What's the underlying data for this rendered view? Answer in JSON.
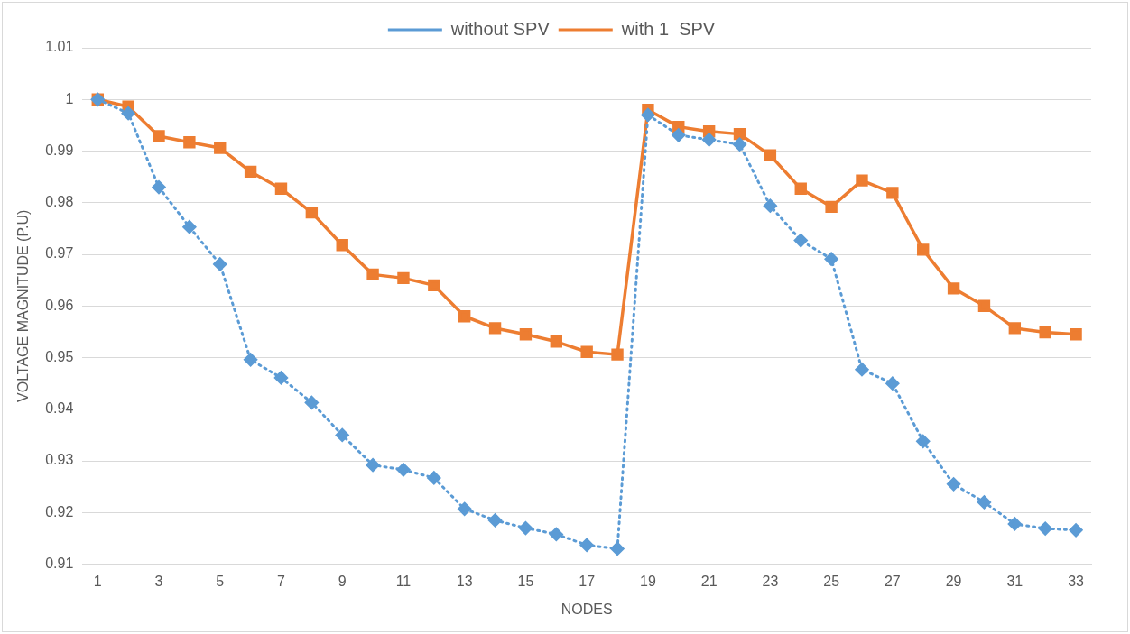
{
  "chart_data": {
    "type": "line",
    "xlabel": "NODES",
    "ylabel": "VOLTAGE MAGNITUDE (P.U)",
    "x": [
      1,
      2,
      3,
      4,
      5,
      6,
      7,
      8,
      9,
      10,
      11,
      12,
      13,
      14,
      15,
      16,
      17,
      18,
      19,
      20,
      21,
      22,
      23,
      24,
      25,
      26,
      27,
      28,
      29,
      30,
      31,
      32,
      33
    ],
    "xlim": [
      0.5,
      33.5
    ],
    "xticks": [
      1,
      3,
      5,
      7,
      9,
      11,
      13,
      15,
      17,
      19,
      21,
      23,
      25,
      27,
      29,
      31,
      33
    ],
    "series": [
      {
        "name": "without SPV",
        "color": "#5b9bd5",
        "marker": "diamond",
        "line_style": "dotted",
        "values": [
          1.0,
          0.9973,
          0.983,
          0.9753,
          0.9681,
          0.9496,
          0.9461,
          0.9413,
          0.935,
          0.9292,
          0.9283,
          0.9267,
          0.9207,
          0.9185,
          0.917,
          0.9158,
          0.9137,
          0.913,
          0.997,
          0.9931,
          0.9922,
          0.9913,
          0.9794,
          0.9727,
          0.9691,
          0.9477,
          0.945,
          0.9338,
          0.9255,
          0.922,
          0.9178,
          0.9169,
          0.9166
        ]
      },
      {
        "name": "with 1  SPV",
        "color": "#ed7d31",
        "marker": "square",
        "line_style": "solid",
        "values": [
          1.0,
          0.9986,
          0.9929,
          0.9917,
          0.9906,
          0.986,
          0.9827,
          0.9781,
          0.9718,
          0.9661,
          0.9654,
          0.964,
          0.958,
          0.9557,
          0.9545,
          0.9531,
          0.9511,
          0.9506,
          0.998,
          0.9947,
          0.9938,
          0.9933,
          0.9892,
          0.9827,
          0.9792,
          0.9843,
          0.9819,
          0.9709,
          0.9634,
          0.96,
          0.9557,
          0.9549,
          0.9545
        ]
      }
    ],
    "ylim": [
      0.91,
      1.01
    ],
    "yticks": [
      0.91,
      0.92,
      0.93,
      0.94,
      0.95,
      0.96,
      0.97,
      0.98,
      0.99,
      1,
      1.01
    ],
    "grid": "y",
    "legend": "top"
  }
}
